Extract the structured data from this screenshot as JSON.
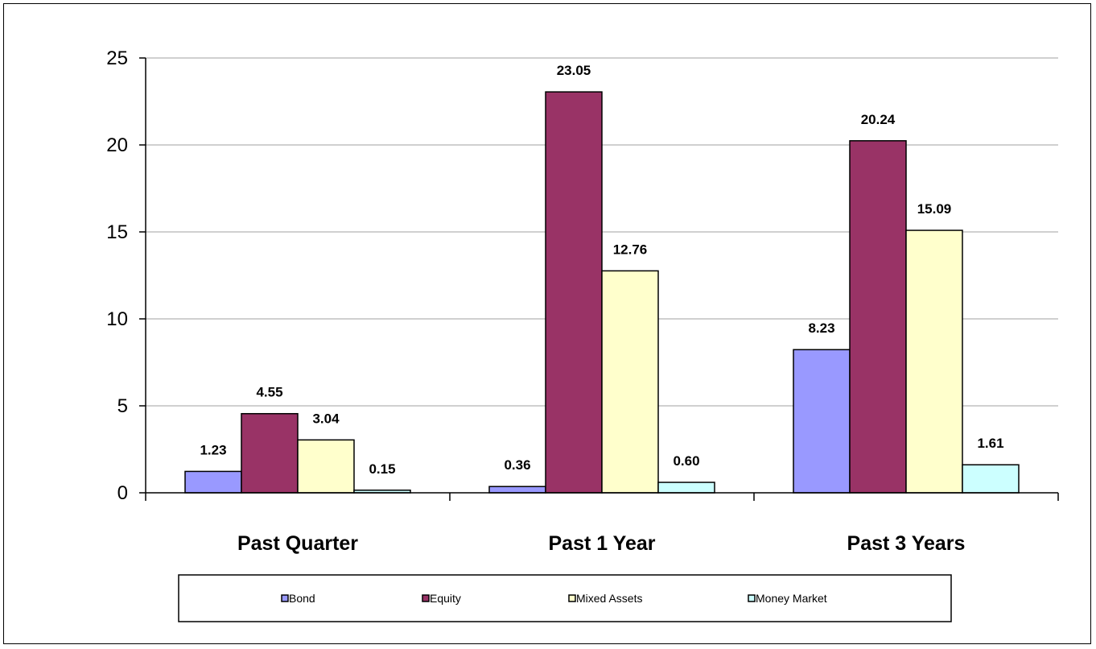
{
  "chart_data": {
    "type": "bar",
    "title": "",
    "xlabel": "",
    "ylabel": "",
    "categories": [
      "Past Quarter",
      "Past 1 Year",
      "Past 3 Years"
    ],
    "series": [
      {
        "name": "Bond",
        "color": "#9999ff",
        "values": [
          1.23,
          0.36,
          8.23
        ],
        "labels": [
          "1.23",
          "0.36",
          "8.23"
        ]
      },
      {
        "name": "Equity",
        "color": "#993366",
        "values": [
          4.55,
          23.05,
          20.24
        ],
        "labels": [
          "4.55",
          "23.05",
          "20.24"
        ]
      },
      {
        "name": "Mixed Assets",
        "color": "#ffffcc",
        "values": [
          3.04,
          12.76,
          15.09
        ],
        "labels": [
          "3.04",
          "12.76",
          "15.09"
        ]
      },
      {
        "name": "Money Market",
        "color": "#ccffff",
        "values": [
          0.15,
          0.6,
          1.61
        ],
        "labels": [
          "0.15",
          "0.60",
          "1.61"
        ]
      }
    ],
    "ylim": [
      0,
      25
    ],
    "yticks": [
      0,
      5,
      10,
      15,
      20,
      25
    ],
    "grid": true,
    "legend": "bottom"
  }
}
